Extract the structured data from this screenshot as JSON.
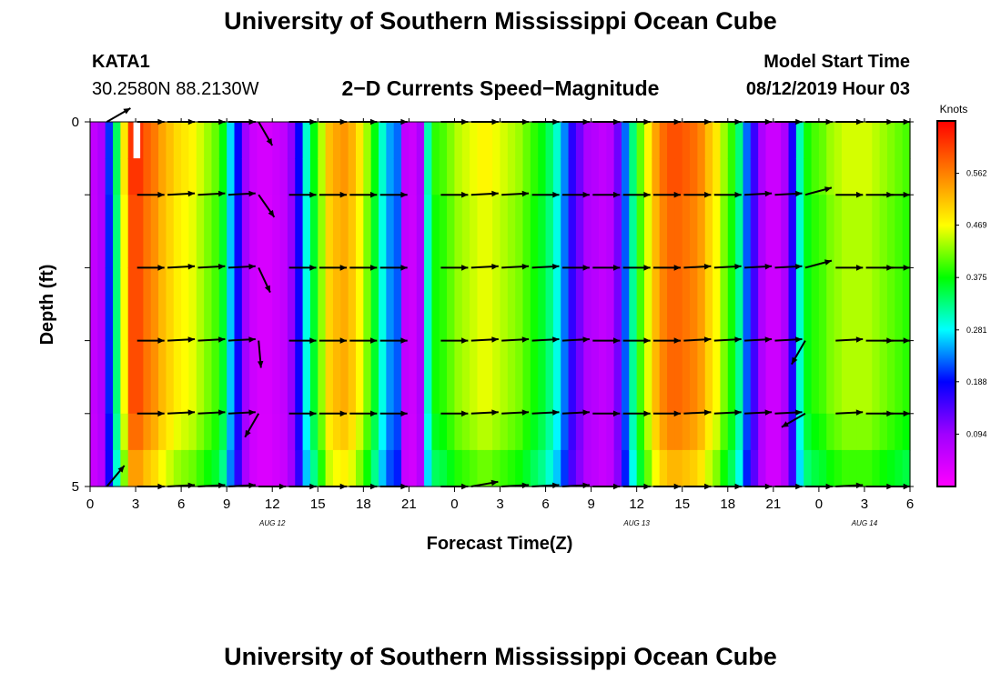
{
  "header": {
    "title": "University of Southern Mississippi Ocean Cube",
    "station": "KATA1",
    "coords": "30.2580N 88.2130W",
    "product": "2−D Currents Speed−Magnitude",
    "model_start_label": "Model Start Time",
    "model_start_value": "08/12/2019 Hour 03"
  },
  "footer": {
    "title": "University of Southern Mississippi Ocean Cube"
  },
  "chart_data": {
    "type": "heatmap",
    "title": "2−D Currents Speed−Magnitude",
    "xlabel": "Forecast Time(Z)",
    "ylabel": "Depth (ft)",
    "x_hours": [
      0,
      54
    ],
    "xticks": [
      0,
      3,
      6,
      9,
      12,
      15,
      18,
      21,
      24,
      27,
      30,
      33,
      36,
      39,
      42,
      45,
      48,
      51,
      54
    ],
    "xtick_labels": [
      "0",
      "3",
      "6",
      "9",
      "12",
      "15",
      "18",
      "21",
      "0",
      "3",
      "6",
      "9",
      "12",
      "15",
      "18",
      "21",
      "0",
      "3",
      "6"
    ],
    "date_labels": [
      {
        "hour": 12,
        "text": "AUG 12"
      },
      {
        "hour": 36,
        "text": "AUG 13"
      },
      {
        "hour": 51,
        "text": "AUG 14"
      }
    ],
    "ylim": [
      0,
      5
    ],
    "yticks": [
      0,
      1,
      2,
      3,
      4,
      5
    ],
    "ytick_labels": [
      "0",
      "",
      "",
      "",
      "",
      "5"
    ],
    "colorbar": {
      "title": "Knots",
      "range": [
        0,
        0.656
      ],
      "ticks": [
        0.094,
        0.188,
        0.281,
        0.375,
        0.469,
        0.562
      ],
      "tick_labels": [
        "0.094",
        "0.188",
        "0.281",
        "0.375",
        "0.469",
        "0.562"
      ]
    },
    "depth_layers_ft": [
      0.25,
      0.75,
      1.5,
      2.5,
      3.5,
      4.25,
      4.75
    ],
    "speed_knots_by_hour": [
      0.06,
      0.08,
      0.2,
      0.33,
      0.47,
      0.6,
      0.6,
      0.57,
      0.55,
      0.52,
      0.5,
      0.48,
      0.47,
      0.46,
      0.44,
      0.42,
      0.4,
      0.36,
      0.26,
      0.18,
      0.09,
      0.05,
      0.04,
      0.04,
      0.05,
      0.06,
      0.1,
      0.18,
      0.29,
      0.36,
      0.43,
      0.5,
      0.52,
      0.53,
      0.51,
      0.47,
      0.42,
      0.36,
      0.29,
      0.24,
      0.22,
      0.06,
      0.05,
      0.08,
      0.3,
      0.38,
      0.39,
      0.41,
      0.43,
      0.44,
      0.45,
      0.46,
      0.46,
      0.45,
      0.44,
      0.43,
      0.42,
      0.4,
      0.38,
      0.36,
      0.33,
      0.29,
      0.23,
      0.16,
      0.12,
      0.08,
      0.07,
      0.06,
      0.07,
      0.12,
      0.22,
      0.32,
      0.4,
      0.46,
      0.52,
      0.56,
      0.58,
      0.58,
      0.57,
      0.56,
      0.54,
      0.5,
      0.47,
      0.42,
      0.38,
      0.32,
      0.22,
      0.15,
      0.08,
      0.05,
      0.05,
      0.08,
      0.17,
      0.3,
      0.37,
      0.39,
      0.4,
      0.42,
      0.43,
      0.44,
      0.44,
      0.44,
      0.44,
      0.43,
      0.42,
      0.41,
      0.4,
      0.39
    ],
    "vector_rows_ft": [
      0,
      1,
      2,
      3,
      4,
      5
    ],
    "vector_times_hours": [
      2,
      4,
      6,
      8,
      10,
      12,
      14,
      16,
      18,
      20,
      24,
      26,
      28,
      30,
      32,
      34,
      36,
      38,
      40,
      42,
      44,
      46,
      48,
      50,
      52,
      54
    ],
    "vector_angles_deg": [
      [
        30,
        0,
        0,
        0,
        0,
        -60,
        0,
        0,
        0,
        0,
        0,
        0,
        0,
        0,
        0,
        0,
        0,
        0,
        0,
        0,
        0,
        0,
        0,
        0,
        0,
        0
      ],
      [
        null,
        0,
        3,
        3,
        3,
        -55,
        0,
        0,
        0,
        0,
        0,
        3,
        3,
        0,
        0,
        0,
        0,
        0,
        0,
        0,
        3,
        3,
        15,
        0,
        0,
        0
      ],
      [
        null,
        0,
        3,
        3,
        3,
        -65,
        0,
        0,
        0,
        0,
        0,
        3,
        3,
        3,
        0,
        0,
        0,
        0,
        3,
        3,
        3,
        3,
        15,
        0,
        0,
        0
      ],
      [
        null,
        0,
        3,
        3,
        3,
        -85,
        0,
        0,
        0,
        0,
        0,
        3,
        3,
        3,
        3,
        0,
        0,
        0,
        3,
        3,
        3,
        3,
        -120,
        3,
        0,
        0
      ],
      [
        null,
        0,
        3,
        3,
        3,
        240,
        0,
        0,
        0,
        0,
        0,
        3,
        3,
        3,
        3,
        0,
        0,
        0,
        3,
        3,
        3,
        3,
        210,
        3,
        0,
        0
      ],
      [
        50,
        0,
        3,
        3,
        3,
        0,
        0,
        0,
        0,
        0,
        0,
        10,
        3,
        3,
        3,
        0,
        0,
        0,
        0,
        0,
        0,
        0,
        0,
        3,
        0,
        0
      ]
    ]
  }
}
